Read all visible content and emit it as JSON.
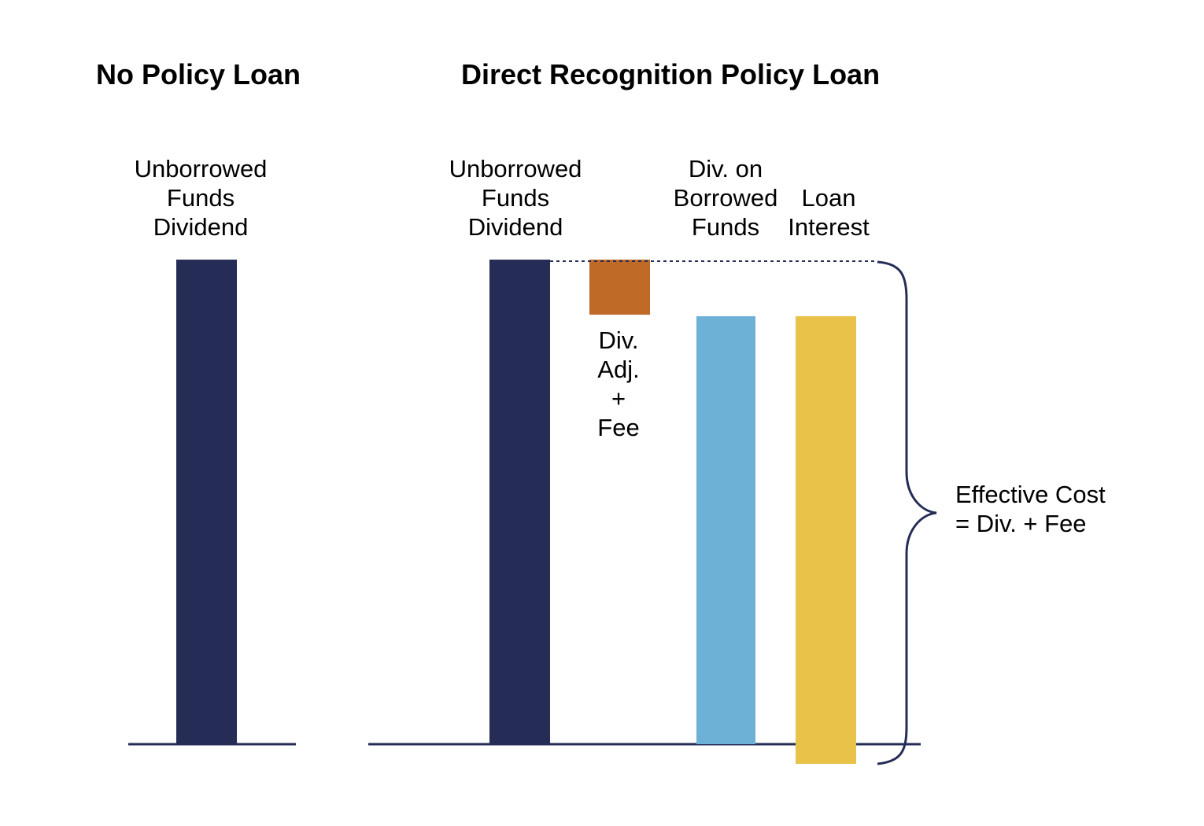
{
  "titles": {
    "left": "No Policy Loan",
    "right": "Direct Recognition Policy Loan"
  },
  "labels": {
    "no_loan_unborrowed": "Unborrowed\nFunds\nDividend",
    "unborrowed": "Unborrowed\nFunds\nDividend",
    "div_borrowed": "Div. on\nBorrowed\nFunds",
    "loan_interest": "Loan\nInterest",
    "div_adj_fee": "Div.\nAdj.\n+\nFee",
    "effective_cost": "Effective Cost\n= Div. + Fee"
  },
  "colors": {
    "navy": "#252d57",
    "orange": "#c06a27",
    "light_blue": "#6db1d6",
    "yellow": "#e9c349",
    "axis": "#252d57",
    "brace": "#252d57"
  }
}
